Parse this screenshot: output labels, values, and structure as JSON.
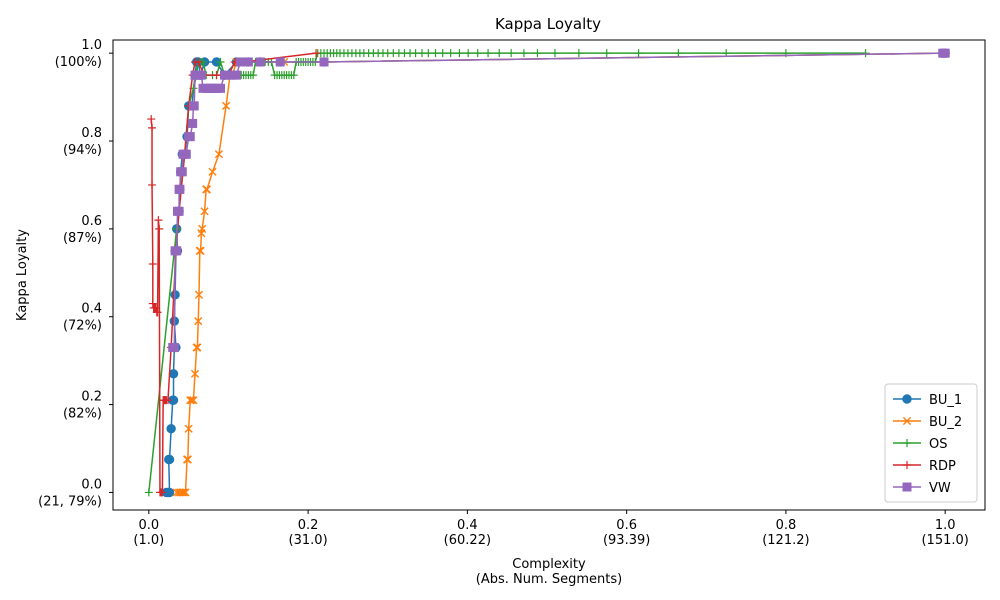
{
  "chart_data": {
    "type": "line",
    "title": "Kappa Loyalty",
    "xlabel": [
      "Complexity",
      "(Abs. Num. Segments)"
    ],
    "ylabel": "Kappa Loyalty",
    "xlim": [
      -0.045,
      1.05
    ],
    "ylim": [
      -0.04,
      1.03
    ],
    "x_ticks": [
      {
        "value": 0.0,
        "label": [
          "0.0",
          "(1.0)"
        ]
      },
      {
        "value": 0.2,
        "label": [
          "0.2",
          "(31.0)"
        ]
      },
      {
        "value": 0.4,
        "label": [
          "0.4",
          "(60.22)"
        ]
      },
      {
        "value": 0.6,
        "label": [
          "0.6",
          "(93.39)"
        ]
      },
      {
        "value": 0.8,
        "label": [
          "0.8",
          "(121.2)"
        ]
      },
      {
        "value": 1.0,
        "label": [
          "1.0",
          "(151.0)"
        ]
      }
    ],
    "y_ticks": [
      {
        "value": 0.0,
        "label": [
          "0.0",
          "(21, 79%)"
        ]
      },
      {
        "value": 0.2,
        "label": [
          "0.2",
          "(82%)"
        ]
      },
      {
        "value": 0.4,
        "label": [
          "0.4",
          "(72%)"
        ]
      },
      {
        "value": 0.6,
        "label": [
          "0.6",
          "(87%)"
        ]
      },
      {
        "value": 0.8,
        "label": [
          "0.8",
          "(94%)"
        ]
      },
      {
        "value": 1.0,
        "label": [
          "1.0",
          "(100%)"
        ]
      }
    ],
    "grid": false,
    "legend_position": "bottom-right",
    "series": [
      {
        "name": "BU_1",
        "color": "#1f77b4",
        "marker": "circle",
        "points": [
          [
            0.022,
            0.0
          ],
          [
            0.024,
            0.0
          ],
          [
            0.025,
            0.0
          ],
          [
            0.026,
            0.0
          ],
          [
            0.025,
            0.075
          ],
          [
            0.026,
            0.075
          ],
          [
            0.028,
            0.145
          ],
          [
            0.03,
            0.21
          ],
          [
            0.031,
            0.21
          ],
          [
            0.031,
            0.27
          ],
          [
            0.032,
            0.33
          ],
          [
            0.033,
            0.33
          ],
          [
            0.034,
            0.33
          ],
          [
            0.032,
            0.39
          ],
          [
            0.033,
            0.45
          ],
          [
            0.034,
            0.55
          ],
          [
            0.035,
            0.55
          ],
          [
            0.036,
            0.55
          ],
          [
            0.035,
            0.6
          ],
          [
            0.037,
            0.64
          ],
          [
            0.038,
            0.64
          ],
          [
            0.039,
            0.69
          ],
          [
            0.04,
            0.73
          ],
          [
            0.042,
            0.77
          ],
          [
            0.045,
            0.77
          ],
          [
            0.048,
            0.81
          ],
          [
            0.05,
            0.88
          ],
          [
            0.054,
            0.88
          ],
          [
            0.058,
            0.95
          ],
          [
            0.06,
            0.98
          ],
          [
            0.062,
            0.98
          ],
          [
            0.065,
            0.95
          ],
          [
            0.07,
            0.98
          ],
          [
            0.085,
            0.98
          ],
          [
            0.095,
            0.95
          ],
          [
            0.11,
            0.98
          ],
          [
            0.125,
            0.98
          ],
          [
            0.14,
            0.98
          ],
          [
            0.165,
            0.98
          ],
          [
            0.22,
            0.98
          ],
          [
            0.997,
            1.0
          ],
          [
            1.0,
            1.0
          ]
        ]
      },
      {
        "name": "BU_2",
        "color": "#ff7f0e",
        "marker": "x",
        "points": [
          [
            0.035,
            0.0
          ],
          [
            0.038,
            0.0
          ],
          [
            0.04,
            0.0
          ],
          [
            0.042,
            0.0
          ],
          [
            0.044,
            0.0
          ],
          [
            0.046,
            0.0
          ],
          [
            0.048,
            0.075
          ],
          [
            0.049,
            0.075
          ],
          [
            0.05,
            0.145
          ],
          [
            0.052,
            0.21
          ],
          [
            0.054,
            0.21
          ],
          [
            0.056,
            0.21
          ],
          [
            0.058,
            0.27
          ],
          [
            0.06,
            0.33
          ],
          [
            0.061,
            0.33
          ],
          [
            0.062,
            0.39
          ],
          [
            0.063,
            0.45
          ],
          [
            0.064,
            0.55
          ],
          [
            0.065,
            0.55
          ],
          [
            0.066,
            0.59
          ],
          [
            0.067,
            0.6
          ],
          [
            0.07,
            0.64
          ],
          [
            0.072,
            0.69
          ],
          [
            0.073,
            0.69
          ],
          [
            0.08,
            0.73
          ],
          [
            0.088,
            0.77
          ],
          [
            0.097,
            0.88
          ],
          [
            0.102,
            0.95
          ],
          [
            0.105,
            0.95
          ],
          [
            0.11,
            0.98
          ],
          [
            0.12,
            0.98
          ],
          [
            0.14,
            0.98
          ],
          [
            0.17,
            0.98
          ],
          [
            0.22,
            0.98
          ],
          [
            0.997,
            1.0
          ],
          [
            1.0,
            1.0
          ]
        ]
      },
      {
        "name": "OS",
        "color": "#2ca02c",
        "marker": "plus",
        "points": [
          [
            0.0,
            0.0
          ],
          [
            0.032,
            0.55
          ],
          [
            0.035,
            0.6
          ],
          [
            0.045,
            0.77
          ],
          [
            0.05,
            0.88
          ],
          [
            0.056,
            0.92
          ],
          [
            0.06,
            0.95
          ],
          [
            0.062,
            0.98
          ],
          [
            0.065,
            0.98
          ],
          [
            0.068,
            0.98
          ],
          [
            0.072,
            0.95
          ],
          [
            0.08,
            0.95
          ],
          [
            0.085,
            0.95
          ],
          [
            0.09,
            0.98
          ],
          [
            0.095,
            0.95
          ],
          [
            0.1,
            0.95
          ],
          [
            0.105,
            0.95
          ],
          [
            0.11,
            0.95
          ],
          [
            0.113,
            0.95
          ],
          [
            0.116,
            0.95
          ],
          [
            0.119,
            0.95
          ],
          [
            0.122,
            0.95
          ],
          [
            0.125,
            0.95
          ],
          [
            0.128,
            0.95
          ],
          [
            0.131,
            0.95
          ],
          [
            0.134,
            0.98
          ],
          [
            0.138,
            0.98
          ],
          [
            0.142,
            0.98
          ],
          [
            0.146,
            0.98
          ],
          [
            0.15,
            0.98
          ],
          [
            0.154,
            0.98
          ],
          [
            0.158,
            0.95
          ],
          [
            0.161,
            0.95
          ],
          [
            0.164,
            0.95
          ],
          [
            0.167,
            0.95
          ],
          [
            0.17,
            0.95
          ],
          [
            0.173,
            0.95
          ],
          [
            0.176,
            0.95
          ],
          [
            0.179,
            0.95
          ],
          [
            0.182,
            0.95
          ],
          [
            0.185,
            0.98
          ],
          [
            0.188,
            0.98
          ],
          [
            0.191,
            0.98
          ],
          [
            0.194,
            0.98
          ],
          [
            0.197,
            0.98
          ],
          [
            0.2,
            0.98
          ],
          [
            0.203,
            0.98
          ],
          [
            0.206,
            0.98
          ],
          [
            0.209,
            0.98
          ],
          [
            0.212,
            1.0
          ],
          [
            0.216,
            1.0
          ],
          [
            0.22,
            1.0
          ],
          [
            0.224,
            1.0
          ],
          [
            0.228,
            1.0
          ],
          [
            0.232,
            1.0
          ],
          [
            0.236,
            1.0
          ],
          [
            0.24,
            1.0
          ],
          [
            0.245,
            1.0
          ],
          [
            0.25,
            1.0
          ],
          [
            0.255,
            1.0
          ],
          [
            0.26,
            1.0
          ],
          [
            0.265,
            1.0
          ],
          [
            0.27,
            1.0
          ],
          [
            0.276,
            1.0
          ],
          [
            0.282,
            1.0
          ],
          [
            0.288,
            1.0
          ],
          [
            0.294,
            1.0
          ],
          [
            0.3,
            1.0
          ],
          [
            0.307,
            1.0
          ],
          [
            0.314,
            1.0
          ],
          [
            0.321,
            1.0
          ],
          [
            0.328,
            1.0
          ],
          [
            0.335,
            1.0
          ],
          [
            0.343,
            1.0
          ],
          [
            0.351,
            1.0
          ],
          [
            0.36,
            1.0
          ],
          [
            0.369,
            1.0
          ],
          [
            0.379,
            1.0
          ],
          [
            0.39,
            1.0
          ],
          [
            0.401,
            1.0
          ],
          [
            0.413,
            1.0
          ],
          [
            0.426,
            1.0
          ],
          [
            0.44,
            1.0
          ],
          [
            0.455,
            1.0
          ],
          [
            0.471,
            1.0
          ],
          [
            0.488,
            1.0
          ],
          [
            0.51,
            1.0
          ],
          [
            0.54,
            1.0
          ],
          [
            0.575,
            1.0
          ],
          [
            0.615,
            1.0
          ],
          [
            0.665,
            1.0
          ],
          [
            0.725,
            1.0
          ],
          [
            0.8,
            1.0
          ],
          [
            0.9,
            1.0
          ]
        ]
      },
      {
        "name": "RDP",
        "color": "#d62728",
        "marker": "plus",
        "points": [
          [
            0.003,
            0.85
          ],
          [
            0.004,
            0.83
          ],
          [
            0.004,
            0.7
          ],
          [
            0.005,
            0.52
          ],
          [
            0.005,
            0.43
          ],
          [
            0.006,
            0.42
          ],
          [
            0.007,
            0.42
          ],
          [
            0.008,
            0.42
          ],
          [
            0.009,
            0.42
          ],
          [
            0.01,
            0.41
          ],
          [
            0.011,
            0.41
          ],
          [
            0.012,
            0.62
          ],
          [
            0.013,
            0.6
          ],
          [
            0.014,
            0.0
          ],
          [
            0.015,
            0.0
          ],
          [
            0.016,
            0.0
          ],
          [
            0.017,
            0.0
          ],
          [
            0.018,
            0.21
          ],
          [
            0.019,
            0.21
          ],
          [
            0.02,
            0.21
          ],
          [
            0.021,
            0.21
          ],
          [
            0.022,
            0.21
          ],
          [
            0.024,
            0.21
          ],
          [
            0.028,
            0.33
          ],
          [
            0.034,
            0.55
          ],
          [
            0.038,
            0.64
          ],
          [
            0.045,
            0.77
          ],
          [
            0.05,
            0.88
          ],
          [
            0.055,
            0.95
          ],
          [
            0.058,
            0.98
          ],
          [
            0.062,
            0.98
          ],
          [
            0.07,
            0.95
          ],
          [
            0.085,
            0.95
          ],
          [
            0.1,
            0.95
          ],
          [
            0.108,
            0.98
          ],
          [
            0.115,
            0.98
          ],
          [
            0.12,
            0.98
          ],
          [
            0.21,
            1.0
          ]
        ]
      },
      {
        "name": "VW",
        "color": "#9467bd",
        "marker": "square",
        "points": [
          [
            0.03,
            0.33
          ],
          [
            0.032,
            0.33
          ],
          [
            0.033,
            0.55
          ],
          [
            0.035,
            0.55
          ],
          [
            0.036,
            0.64
          ],
          [
            0.038,
            0.64
          ],
          [
            0.038,
            0.69
          ],
          [
            0.039,
            0.69
          ],
          [
            0.04,
            0.73
          ],
          [
            0.042,
            0.73
          ],
          [
            0.043,
            0.77
          ],
          [
            0.045,
            0.77
          ],
          [
            0.047,
            0.77
          ],
          [
            0.05,
            0.81
          ],
          [
            0.052,
            0.81
          ],
          [
            0.055,
            0.84
          ],
          [
            0.056,
            0.88
          ],
          [
            0.057,
            0.88
          ],
          [
            0.058,
            0.95
          ],
          [
            0.06,
            0.95
          ],
          [
            0.063,
            0.95
          ],
          [
            0.066,
            0.95
          ],
          [
            0.068,
            0.92
          ],
          [
            0.072,
            0.92
          ],
          [
            0.075,
            0.92
          ],
          [
            0.078,
            0.92
          ],
          [
            0.08,
            0.92
          ],
          [
            0.083,
            0.92
          ],
          [
            0.086,
            0.92
          ],
          [
            0.09,
            0.92
          ],
          [
            0.095,
            0.95
          ],
          [
            0.1,
            0.95
          ],
          [
            0.105,
            0.95
          ],
          [
            0.11,
            0.95
          ],
          [
            0.115,
            0.98
          ],
          [
            0.125,
            0.98
          ],
          [
            0.14,
            0.98
          ],
          [
            0.165,
            0.98
          ],
          [
            0.22,
            0.98
          ],
          [
            0.997,
            1.0
          ],
          [
            1.0,
            1.0
          ]
        ]
      }
    ]
  }
}
